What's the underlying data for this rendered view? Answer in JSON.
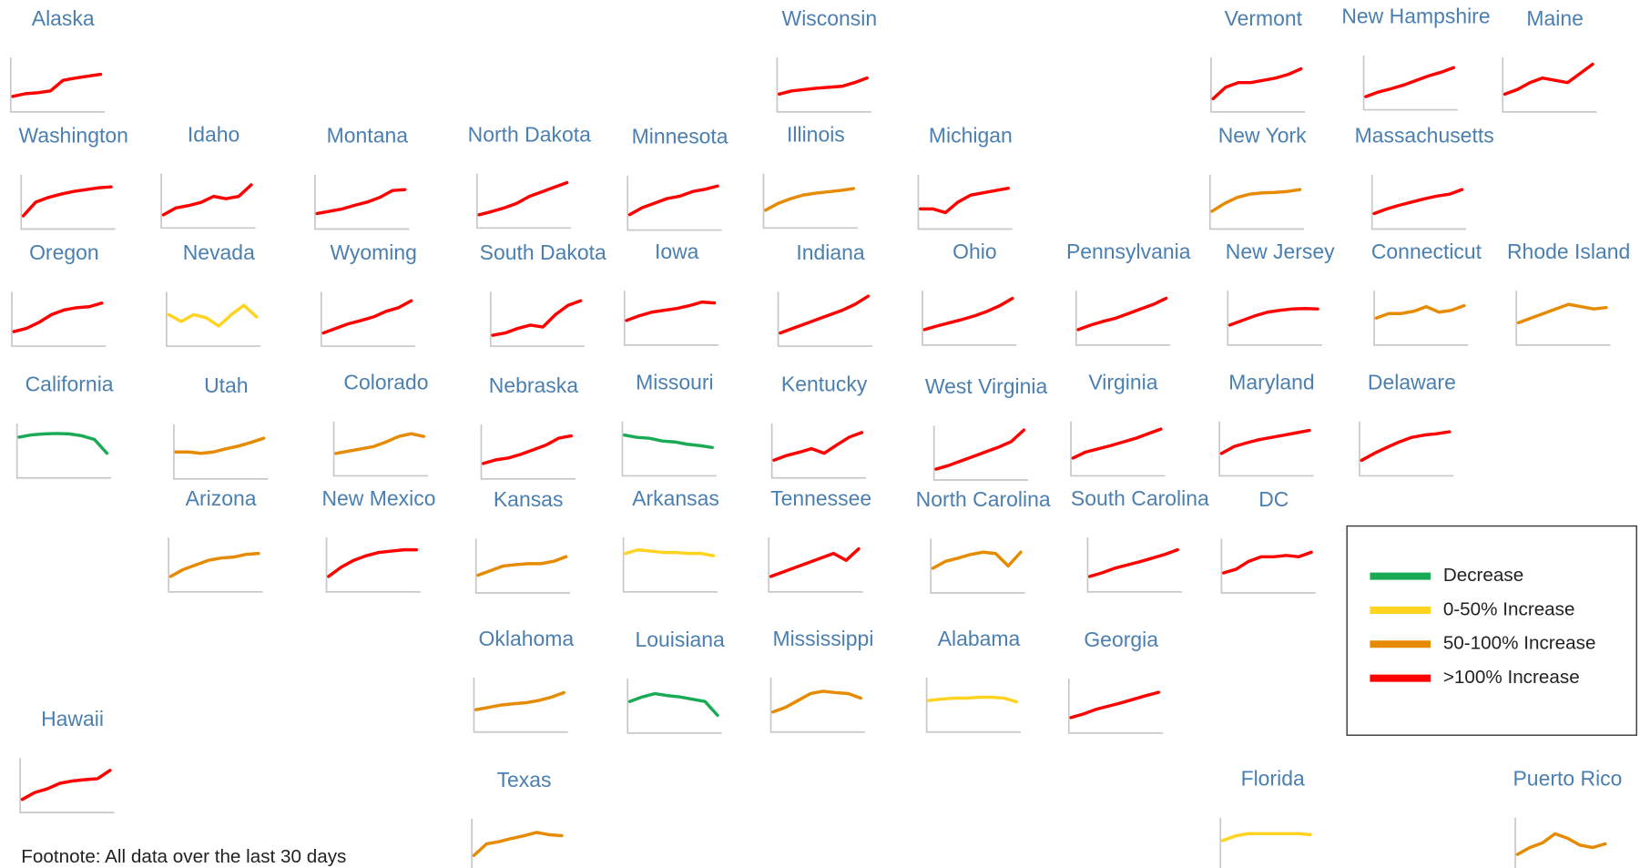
{
  "chart_data": {
    "type": "line",
    "ylim": [
      0,
      100
    ],
    "footnote": "Footnote: All data over the last 30 days",
    "legend": [
      {
        "name": "Decrease",
        "color": "#1aaa55"
      },
      {
        "name": "0-50% Increase",
        "color": "#ffd320"
      },
      {
        "name": "50-100% Increase",
        "color": "#e68a00"
      },
      {
        "name": ">100% Increase",
        "color": "#ff0000"
      }
    ],
    "panels": [
      {
        "name": "Alaska",
        "color": "#ff0000",
        "values": [
          20,
          26,
          28,
          32,
          55,
          60,
          64,
          68
        ]
      },
      {
        "name": "Wisconsin",
        "color": "#ff0000",
        "values": [
          25,
          32,
          35,
          38,
          40,
          42,
          50,
          60
        ]
      },
      {
        "name": "Vermont",
        "color": "#ff0000",
        "values": [
          15,
          40,
          50,
          50,
          55,
          60,
          68,
          80
        ]
      },
      {
        "name": "New Hampshire",
        "color": "#ff0000",
        "values": [
          15,
          25,
          32,
          40,
          50,
          60,
          68,
          78
        ]
      },
      {
        "name": "Maine",
        "color": "#ff0000",
        "values": [
          25,
          35,
          50,
          60,
          55,
          50,
          70,
          90
        ]
      },
      {
        "name": "Washington",
        "color": "#ff0000",
        "values": [
          15,
          45,
          55,
          62,
          68,
          72,
          76,
          78
        ]
      },
      {
        "name": "Idaho",
        "color": "#ff0000",
        "values": [
          15,
          30,
          35,
          42,
          55,
          50,
          55,
          80
        ]
      },
      {
        "name": "Montana",
        "color": "#ff0000",
        "values": [
          20,
          25,
          30,
          38,
          45,
          55,
          70,
          72
        ]
      },
      {
        "name": "North Dakota",
        "color": "#ff0000",
        "values": [
          15,
          22,
          30,
          40,
          55,
          65,
          75,
          85
        ]
      },
      {
        "name": "Minnesota",
        "color": "#ff0000",
        "values": [
          20,
          35,
          45,
          55,
          60,
          70,
          75,
          82
        ]
      },
      {
        "name": "Illinois",
        "color": "#e68a00",
        "values": [
          25,
          40,
          50,
          58,
          62,
          65,
          68,
          72
        ]
      },
      {
        "name": "Michigan",
        "color": "#ff0000",
        "values": [
          30,
          30,
          22,
          45,
          60,
          65,
          70,
          75
        ]
      },
      {
        "name": "New York",
        "color": "#e68a00",
        "values": [
          25,
          42,
          55,
          62,
          65,
          66,
          68,
          72
        ]
      },
      {
        "name": "Massachusetts",
        "color": "#ff0000",
        "values": [
          20,
          30,
          38,
          45,
          52,
          58,
          62,
          72
        ]
      },
      {
        "name": "Oregon",
        "color": "#ff0000",
        "values": [
          18,
          25,
          38,
          55,
          65,
          70,
          72,
          80
        ]
      },
      {
        "name": "Nevada",
        "color": "#ffd320",
        "values": [
          55,
          40,
          55,
          48,
          30,
          55,
          75,
          50
        ]
      },
      {
        "name": "Wyoming",
        "color": "#ff0000",
        "values": [
          15,
          25,
          35,
          42,
          50,
          62,
          70,
          85
        ]
      },
      {
        "name": "South Dakota",
        "color": "#ff0000",
        "values": [
          10,
          15,
          25,
          32,
          28,
          55,
          75,
          85
        ]
      },
      {
        "name": "Iowa",
        "color": "#ff0000",
        "values": [
          40,
          50,
          58,
          62,
          66,
          72,
          80,
          78
        ]
      },
      {
        "name": "Indiana",
        "color": "#ff0000",
        "values": [
          15,
          25,
          35,
          45,
          55,
          65,
          78,
          95
        ]
      },
      {
        "name": "Ohio",
        "color": "#ff0000",
        "values": [
          20,
          28,
          35,
          42,
          50,
          60,
          72,
          88
        ]
      },
      {
        "name": "Pennsylvania",
        "color": "#ff0000",
        "values": [
          20,
          30,
          38,
          45,
          55,
          65,
          75,
          88
        ]
      },
      {
        "name": "New Jersey",
        "color": "#ff0000",
        "values": [
          30,
          40,
          50,
          58,
          62,
          65,
          66,
          65
        ]
      },
      {
        "name": "Connecticut",
        "color": "#e68a00",
        "values": [
          45,
          55,
          55,
          60,
          70,
          58,
          62,
          72
        ]
      },
      {
        "name": "Rhode Island",
        "color": "#e68a00",
        "values": [
          35,
          45,
          55,
          65,
          75,
          70,
          65,
          68
        ]
      },
      {
        "name": "California",
        "color": "#1aaa55",
        "values": [
          75,
          80,
          82,
          83,
          82,
          78,
          70,
          40
        ]
      },
      {
        "name": "Utah",
        "color": "#e68a00",
        "values": [
          45,
          45,
          42,
          45,
          52,
          58,
          66,
          75
        ]
      },
      {
        "name": "Colorado",
        "color": "#e68a00",
        "values": [
          35,
          40,
          45,
          50,
          60,
          72,
          78,
          72
        ]
      },
      {
        "name": "Nebraska",
        "color": "#ff0000",
        "values": [
          20,
          28,
          32,
          40,
          50,
          60,
          75,
          80
        ]
      },
      {
        "name": "Missouri",
        "color": "#1aaa55",
        "values": [
          75,
          70,
          68,
          62,
          60,
          55,
          52,
          48
        ]
      },
      {
        "name": "Kentucky",
        "color": "#ff0000",
        "values": [
          25,
          35,
          42,
          50,
          40,
          58,
          75,
          85
        ]
      },
      {
        "name": "West Virginia",
        "color": "#ff0000",
        "values": [
          10,
          18,
          28,
          38,
          48,
          58,
          70,
          95
        ]
      },
      {
        "name": "Virginia",
        "color": "#ff0000",
        "values": [
          25,
          38,
          45,
          52,
          60,
          68,
          78,
          88
        ]
      },
      {
        "name": "Maryland",
        "color": "#ff0000",
        "values": [
          35,
          50,
          58,
          65,
          70,
          75,
          80,
          85
        ]
      },
      {
        "name": "Delaware",
        "color": "#ff0000",
        "values": [
          20,
          35,
          48,
          60,
          70,
          75,
          78,
          82
        ]
      },
      {
        "name": "Arizona",
        "color": "#e68a00",
        "values": [
          20,
          35,
          45,
          55,
          60,
          62,
          68,
          70
        ]
      },
      {
        "name": "New Mexico",
        "color": "#ff0000",
        "values": [
          20,
          40,
          55,
          65,
          72,
          75,
          78,
          78
        ]
      },
      {
        "name": "Kansas",
        "color": "#e68a00",
        "values": [
          25,
          35,
          45,
          48,
          50,
          50,
          55,
          65
        ]
      },
      {
        "name": "Arkansas",
        "color": "#ffd320",
        "values": [
          70,
          78,
          75,
          72,
          72,
          70,
          70,
          65
        ]
      },
      {
        "name": "Tennessee",
        "color": "#ff0000",
        "values": [
          20,
          30,
          40,
          50,
          60,
          70,
          55,
          80
        ]
      },
      {
        "name": "North Carolina",
        "color": "#e68a00",
        "values": [
          40,
          55,
          62,
          70,
          75,
          72,
          45,
          75
        ]
      },
      {
        "name": "South Carolina",
        "color": "#ff0000",
        "values": [
          20,
          28,
          38,
          45,
          52,
          60,
          68,
          78
        ]
      },
      {
        "name": "DC",
        "color": "#ff0000",
        "values": [
          30,
          38,
          55,
          65,
          65,
          68,
          65,
          75
        ]
      },
      {
        "name": "Oklahoma",
        "color": "#e68a00",
        "values": [
          35,
          40,
          45,
          48,
          50,
          55,
          62,
          72
        ]
      },
      {
        "name": "Louisiana",
        "color": "#1aaa55",
        "values": [
          55,
          65,
          72,
          68,
          65,
          60,
          55,
          25
        ]
      },
      {
        "name": "Mississippi",
        "color": "#e68a00",
        "values": [
          30,
          40,
          55,
          70,
          75,
          72,
          70,
          60
        ]
      },
      {
        "name": "Alabama",
        "color": "#ffd320",
        "values": [
          55,
          58,
          60,
          60,
          62,
          62,
          60,
          52
        ]
      },
      {
        "name": "Georgia",
        "color": "#ff0000",
        "values": [
          20,
          28,
          38,
          45,
          52,
          60,
          68,
          75
        ]
      },
      {
        "name": "Hawaii",
        "color": "#ff0000",
        "values": [
          15,
          30,
          38,
          50,
          55,
          58,
          60,
          78
        ]
      },
      {
        "name": "Texas",
        "color": "#e68a00",
        "values": [
          25,
          50,
          55,
          62,
          68,
          75,
          70,
          68
        ]
      },
      {
        "name": "Florida",
        "color": "#ffd320",
        "values": [
          55,
          65,
          70,
          70,
          70,
          70,
          70,
          68
        ]
      },
      {
        "name": "Puerto Rico",
        "color": "#e68a00",
        "values": [
          25,
          40,
          50,
          70,
          60,
          45,
          40,
          48
        ]
      }
    ]
  }
}
